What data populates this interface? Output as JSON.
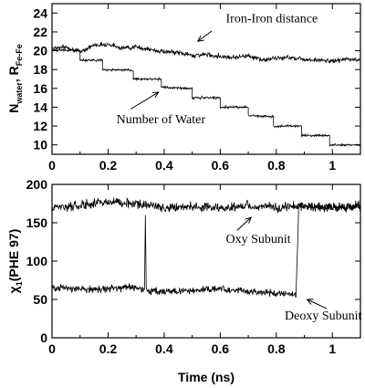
{
  "chart_data": [
    {
      "type": "line",
      "id": "top",
      "ylabel": "N_water, R_Fe-Fe",
      "ylabel_parts": {
        "n": "N",
        "n_sub": "water",
        "sep": ", R",
        "r_sub": "Fe-Fe"
      },
      "xlim": [
        0,
        1.1
      ],
      "ylim": [
        9,
        25
      ],
      "xticks": [
        0,
        0.2,
        0.4,
        0.6,
        0.8,
        1
      ],
      "xtick_labels": [
        "0",
        "0.2",
        "0.4",
        "0.6",
        "0.8",
        "1"
      ],
      "yticks": [
        10,
        12,
        14,
        16,
        18,
        20,
        22,
        24
      ],
      "ytick_labels": [
        "10",
        "12",
        "14",
        "16",
        "18",
        "20",
        "22",
        "24"
      ],
      "series": [
        {
          "key": "iron",
          "points": [
            [
              0,
              20.3
            ],
            [
              0.05,
              20.4
            ],
            [
              0.1,
              19.9
            ],
            [
              0.15,
              20.6
            ],
            [
              0.2,
              20.7
            ],
            [
              0.25,
              20.3
            ],
            [
              0.3,
              20.4
            ],
            [
              0.35,
              20.1
            ],
            [
              0.4,
              19.9
            ],
            [
              0.45,
              19.8
            ],
            [
              0.5,
              19.5
            ],
            [
              0.55,
              19.6
            ],
            [
              0.6,
              19.4
            ],
            [
              0.65,
              19.3
            ],
            [
              0.7,
              19.5
            ],
            [
              0.75,
              19.0
            ],
            [
              0.8,
              19.2
            ],
            [
              0.85,
              19.3
            ],
            [
              0.9,
              19.1
            ],
            [
              0.95,
              19.0
            ],
            [
              1.0,
              18.9
            ],
            [
              1.05,
              19.1
            ],
            [
              1.1,
              19.0
            ]
          ],
          "noise": 0.35
        },
        {
          "key": "water",
          "points": [
            [
              0,
              20.1
            ],
            [
              0.1,
              20.0
            ],
            [
              0.1,
              19.0
            ],
            [
              0.18,
              19.0
            ],
            [
              0.18,
              18.0
            ],
            [
              0.29,
              17.9
            ],
            [
              0.29,
              17.0
            ],
            [
              0.39,
              17.0
            ],
            [
              0.39,
              16.1
            ],
            [
              0.5,
              16.0
            ],
            [
              0.5,
              15.0
            ],
            [
              0.6,
              15.0
            ],
            [
              0.6,
              14.0
            ],
            [
              0.7,
              14.0
            ],
            [
              0.7,
              13.1
            ],
            [
              0.79,
              13.0
            ],
            [
              0.79,
              12.0
            ],
            [
              0.89,
              12.0
            ],
            [
              0.89,
              11.0
            ],
            [
              0.99,
              11.0
            ],
            [
              0.99,
              10.0
            ],
            [
              1.1,
              10.0
            ]
          ],
          "noise": 0.18
        }
      ],
      "annotations": [
        {
          "text": "Iron-Iron distance",
          "at": [
            0.62,
            23.0
          ],
          "arrow_from": [
            0.57,
            22.1
          ],
          "arrow_to": [
            0.52,
            21.0
          ]
        },
        {
          "text": "Number of Water",
          "at": [
            0.23,
            12.3
          ],
          "arrow_from": [
            0.28,
            13.8
          ],
          "arrow_to": [
            0.38,
            15.6
          ]
        }
      ]
    },
    {
      "type": "line",
      "id": "bottom",
      "xlabel": "Time (ns)",
      "ylabel": "χ1(PHE 97)",
      "ylabel_parts": {
        "chi": "χ",
        "chi_sub": "1",
        "rest": "(PHE 97)"
      },
      "xlim": [
        0,
        1.1
      ],
      "ylim": [
        0,
        200
      ],
      "xticks": [
        0,
        0.2,
        0.4,
        0.6,
        0.8,
        1
      ],
      "xtick_labels": [
        "0",
        "0.2",
        "0.4",
        "0.6",
        "0.8",
        "1"
      ],
      "yticks": [
        0,
        50,
        100,
        150,
        200
      ],
      "ytick_labels": [
        "0",
        "50",
        "100",
        "150",
        "200"
      ],
      "series": [
        {
          "key": "oxy",
          "points": [
            [
              0,
              170
            ],
            [
              0.1,
              172
            ],
            [
              0.2,
              178
            ],
            [
              0.3,
              175
            ],
            [
              0.4,
              170
            ],
            [
              0.5,
              171
            ],
            [
              0.6,
              169
            ],
            [
              0.7,
              172
            ],
            [
              0.8,
              170
            ],
            [
              0.9,
              172
            ],
            [
              1.0,
              170
            ],
            [
              1.1,
              172
            ]
          ],
          "noise": 9
        },
        {
          "key": "deoxy",
          "points": [
            [
              0,
              65
            ],
            [
              0.1,
              63
            ],
            [
              0.2,
              64
            ],
            [
              0.3,
              66
            ],
            [
              0.33,
              62
            ],
            [
              0.333,
              158
            ],
            [
              0.336,
              62
            ],
            [
              0.4,
              60
            ],
            [
              0.5,
              62
            ],
            [
              0.6,
              64
            ],
            [
              0.7,
              60
            ],
            [
              0.8,
              58
            ],
            [
              0.87,
              56
            ],
            [
              0.875,
              110
            ],
            [
              0.88,
              172
            ],
            [
              0.95,
              170
            ],
            [
              1.1,
              170
            ]
          ],
          "noise": 7
        }
      ],
      "annotations": [
        {
          "text": "Oxy Subunit",
          "at": [
            0.62,
            124
          ],
          "arrow_from": [
            0.66,
            140
          ],
          "arrow_to": [
            0.71,
            157
          ]
        },
        {
          "text": "Deoxy Subunit",
          "at": [
            0.83,
            24
          ],
          "arrow_from": [
            0.98,
            38
          ],
          "arrow_to": [
            0.91,
            50
          ]
        }
      ]
    }
  ]
}
